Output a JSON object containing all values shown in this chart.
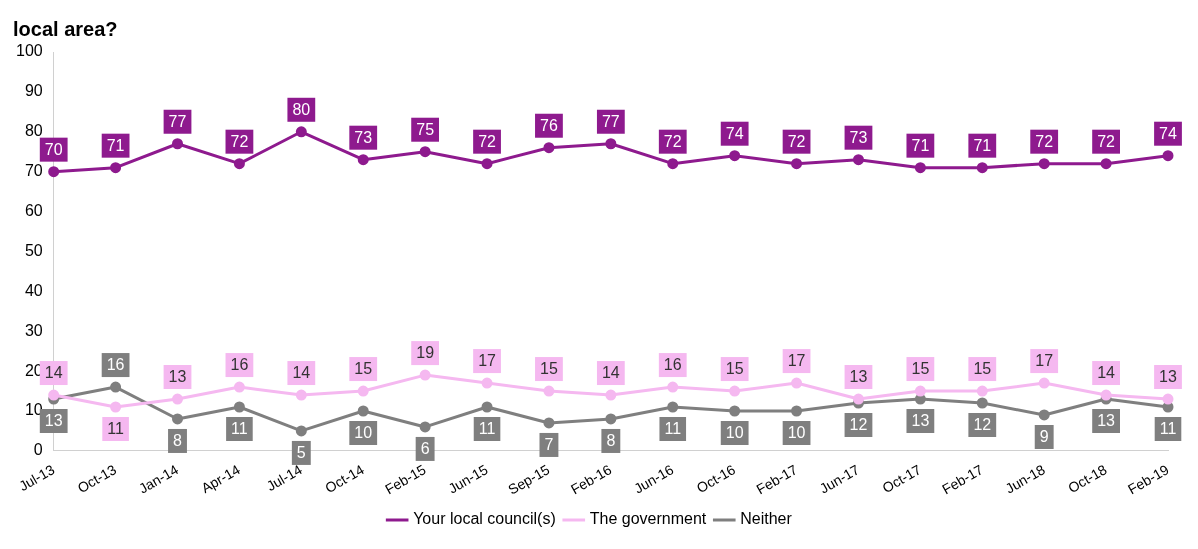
{
  "chart_data": {
    "type": "line",
    "title": "local area?",
    "categories": [
      "Jul-13",
      "Oct-13",
      "Jan-14",
      "Apr-14",
      "Jul-14",
      "Oct-14",
      "Feb-15",
      "Jun-15",
      "Sep-15",
      "Feb-16",
      "Jun-16",
      "Oct-16",
      "Feb-17",
      "Jun-17",
      "Oct-17",
      "Feb-17",
      "Jun-18",
      "Oct-18",
      "Feb-19"
    ],
    "series": [
      {
        "name": "Your local council(s)",
        "color": "#8e1a8e",
        "values": [
          70,
          71,
          77,
          72,
          80,
          73,
          75,
          72,
          76,
          77,
          72,
          74,
          72,
          73,
          71,
          71,
          72,
          72,
          74
        ]
      },
      {
        "name": "The government",
        "color": "#f5b8f0",
        "values": [
          14,
          11,
          13,
          16,
          14,
          15,
          19,
          17,
          15,
          14,
          16,
          15,
          17,
          13,
          15,
          15,
          17,
          14,
          13
        ]
      },
      {
        "name": "Neither",
        "color": "#7f7f7f",
        "values": [
          13,
          16,
          8,
          11,
          5,
          10,
          6,
          11,
          7,
          8,
          11,
          10,
          10,
          12,
          13,
          12,
          9,
          13,
          11
        ]
      }
    ],
    "ylim": [
      0,
      100
    ],
    "yticks": [
      0,
      10,
      20,
      30,
      40,
      50,
      60,
      70,
      80,
      90,
      100
    ],
    "grid": false,
    "legend": "bottom",
    "marker": "circle",
    "line_style": "solid",
    "data_labels": true
  }
}
